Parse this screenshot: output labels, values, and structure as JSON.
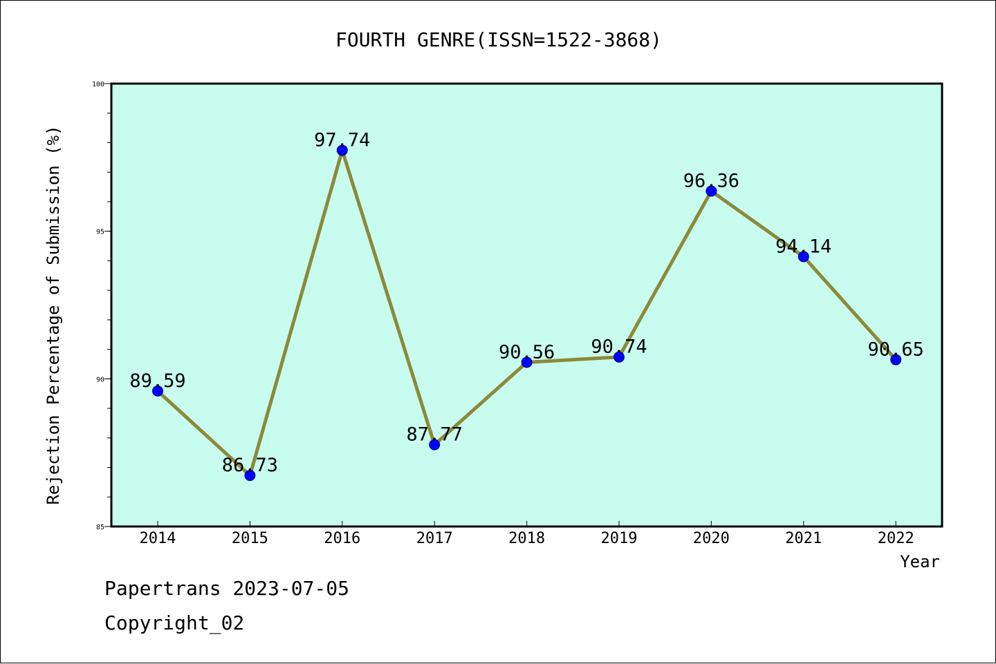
{
  "chart_data": {
    "type": "line",
    "title": "FOURTH GENRE(ISSN=1522-3868)",
    "xlabel": "Year",
    "ylabel": "Rejection Percentage of Submission (%)",
    "categories": [
      "2014",
      "2015",
      "2016",
      "2017",
      "2018",
      "2019",
      "2020",
      "2021",
      "2022"
    ],
    "series": [
      {
        "values": [
          89.59,
          86.73,
          97.74,
          87.77,
          90.56,
          90.74,
          96.36,
          94.14,
          90.65
        ],
        "data_labels": [
          "89.59",
          "86.73",
          "97.74",
          "87.77",
          "90.56",
          "90.74",
          "96.36",
          "94.14",
          "90.65"
        ],
        "line_color": "#8b8a3a",
        "marker_color": "#0000ff"
      }
    ],
    "ylim": [
      85,
      100
    ],
    "y_ticks": [
      "85",
      "90",
      "95",
      "100"
    ],
    "y_minor_step": 1,
    "grid": false,
    "plot_background": "#c8fcee"
  },
  "footer": {
    "line1": "Papertrans 2023-07-05",
    "line2": "Copyright_02"
  }
}
